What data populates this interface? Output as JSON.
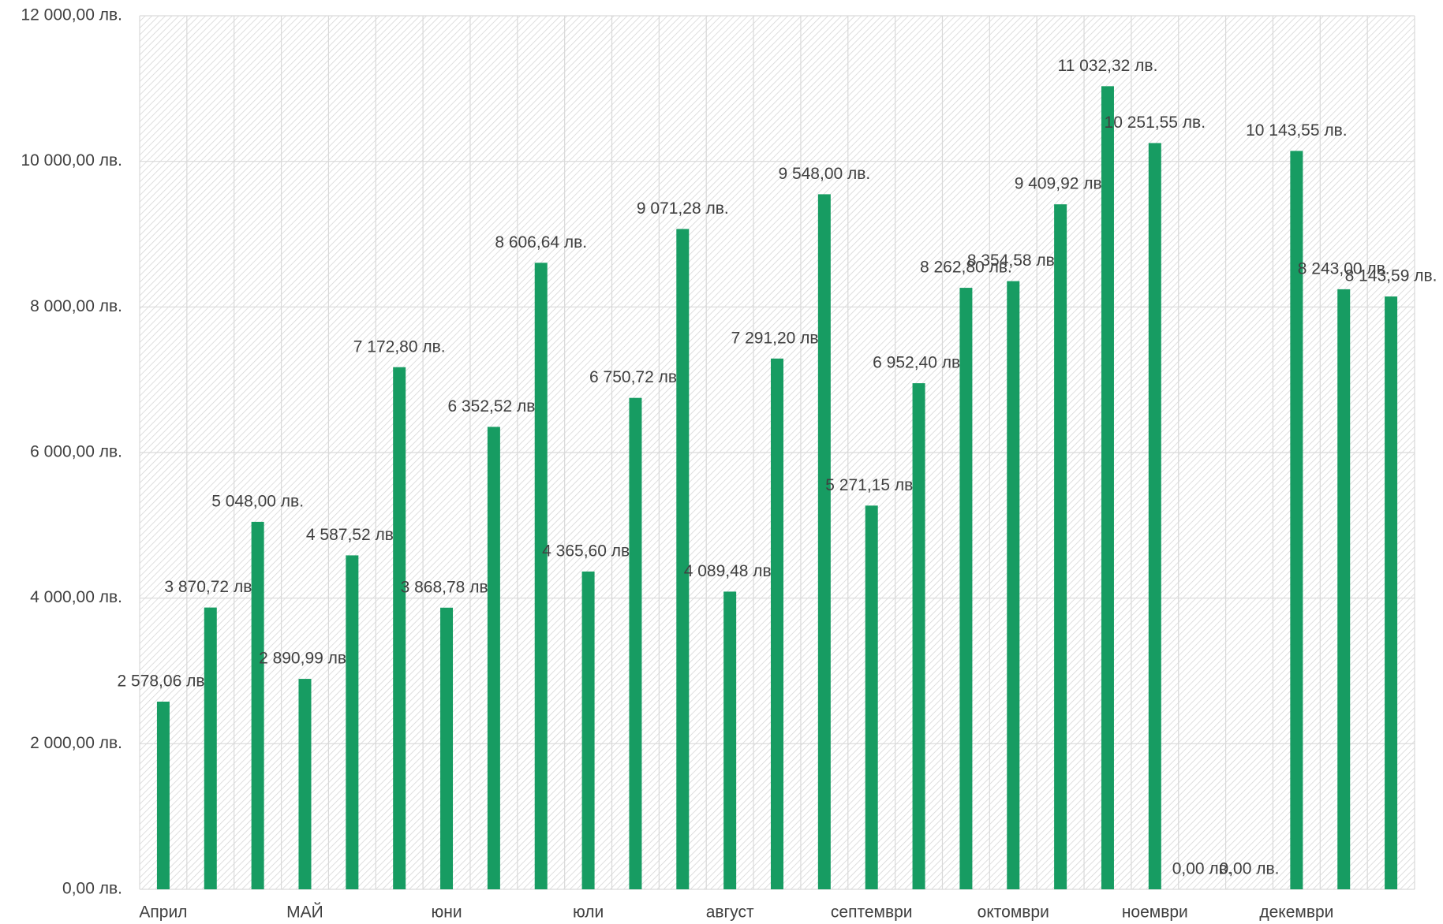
{
  "chart_data": {
    "type": "bar",
    "categories": [
      "Април",
      null,
      null,
      "МАЙ",
      null,
      null,
      "юни",
      null,
      null,
      "юли",
      null,
      null,
      "август",
      null,
      null,
      "септември",
      null,
      null,
      "октомври",
      null,
      null,
      "ноември",
      null,
      null,
      "декември",
      null,
      null
    ],
    "values": [
      2578.06,
      3870.72,
      5048.0,
      2890.99,
      4587.52,
      7172.8,
      3868.78,
      6352.52,
      8606.64,
      4365.6,
      6750.72,
      9071.28,
      4089.48,
      7291.2,
      9548.0,
      5271.15,
      6952.4,
      8262.8,
      8354.58,
      9409.92,
      11032.32,
      10251.55,
      0,
      0,
      10143.55,
      8243.0,
      8143.59
    ],
    "value_labels": [
      "2 578,06 лв.",
      "3 870,72 лв.",
      "5 048,00 лв.",
      "2 890,99 лв.",
      "4 587,52 лв.",
      "7 172,80 лв.",
      "3 868,78 лв.",
      "6 352,52 лв.",
      "8 606,64 лв.",
      "4 365,60 лв.",
      "6 750,72 лв.",
      "9 071,28 лв.",
      "4 089,48 лв.",
      "7 291,20 лв.",
      "9 548,00 лв.",
      "5 271,15 лв.",
      "6 952,40 лв.",
      "8 262,80 лв.",
      "8 354,58 лв.",
      "9 409,92 лв.",
      "11 032,32 лв.",
      "10 251,55 лв.",
      "0,00 лв.",
      "0,00 лв.",
      "10 143,55 лв.",
      "8 243,00 лв.",
      "8 143,59 лв."
    ],
    "color": "#179c62",
    "ylim": [
      0,
      12000
    ],
    "yticks": [
      {
        "value": 0,
        "label": "0,00 лв."
      },
      {
        "value": 2000,
        "label": "2 000,00 лв."
      },
      {
        "value": 4000,
        "label": "4 000,00 лв."
      },
      {
        "value": 6000,
        "label": "6 000,00 лв."
      },
      {
        "value": 8000,
        "label": "8 000,00 лв."
      },
      {
        "value": 10000,
        "label": "10 000,00 лв."
      },
      {
        "value": 12000,
        "label": "12 000,00 лв."
      }
    ],
    "grid": true
  }
}
